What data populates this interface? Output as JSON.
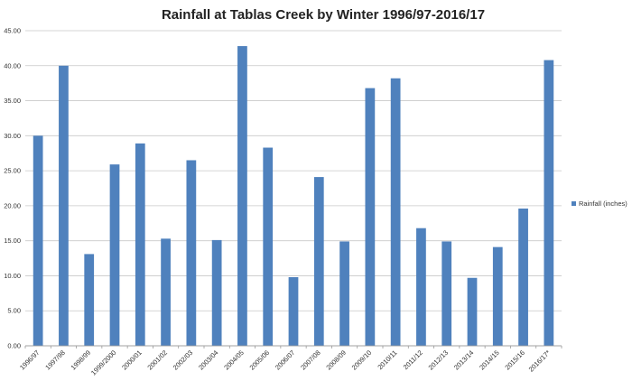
{
  "chart_data": {
    "type": "bar",
    "title": "Rainfall at Tablas Creek by Winter 1996/97-2016/17",
    "xlabel": "",
    "ylabel": "",
    "ylim": [
      0,
      45
    ],
    "yticks": [
      "0.00",
      "5.00",
      "10.00",
      "15.00",
      "20.00",
      "25.00",
      "30.00",
      "35.00",
      "40.00",
      "45.00"
    ],
    "grid": true,
    "legend_position": "right",
    "bar_color": "#4f81bd",
    "categories": [
      "1996/97",
      "1997/98",
      "1998/99",
      "1999/2000",
      "2000/01",
      "2001/02",
      "2002/03",
      "2003/04",
      "2004/05",
      "2005/06",
      "2006/07",
      "2007/08",
      "2008/09",
      "2009/10",
      "2010/11",
      "2011/12",
      "2012/13",
      "2013/14",
      "2014/15",
      "2015/16",
      "2016/17*"
    ],
    "series": [
      {
        "name": "Rainfall (inches)",
        "values": [
          30.0,
          40.0,
          13.1,
          25.9,
          28.9,
          15.3,
          26.5,
          15.1,
          42.8,
          28.3,
          9.8,
          24.1,
          14.9,
          36.8,
          38.2,
          16.8,
          14.9,
          9.7,
          14.1,
          19.6,
          40.8
        ]
      }
    ]
  }
}
